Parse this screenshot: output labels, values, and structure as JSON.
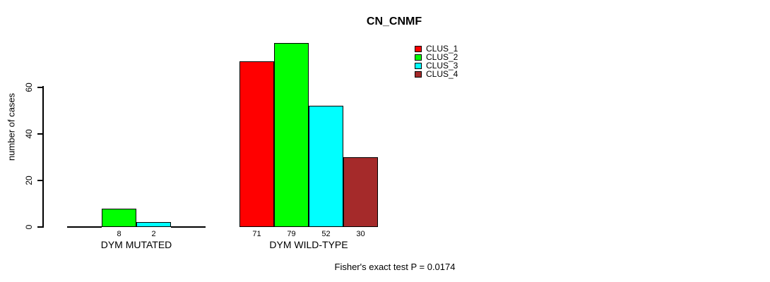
{
  "chart_data": {
    "type": "bar",
    "title": "CN_CNMF",
    "xlabel": "",
    "ylabel": "number of cases",
    "yticks": [
      0,
      20,
      40,
      60
    ],
    "ylim": [
      0,
      83
    ],
    "grid": false,
    "legend_position": "top-right",
    "categories": [
      "DYM MUTATED",
      "DYM WILD-TYPE"
    ],
    "series": [
      {
        "name": "CLUS_1",
        "color": "#FF0000",
        "values": [
          0,
          71
        ]
      },
      {
        "name": "CLUS_2",
        "color": "#00FF00",
        "values": [
          8,
          79
        ]
      },
      {
        "name": "CLUS_3",
        "color": "#00FFFF",
        "values": [
          2,
          52
        ]
      },
      {
        "name": "CLUS_4",
        "color": "#A52A2A",
        "values": [
          0,
          30
        ]
      }
    ],
    "bar_value_labels": [
      [
        "",
        "8",
        "2",
        ""
      ],
      [
        "71",
        "79",
        "52",
        "30"
      ]
    ],
    "footnote": "Fisher's exact test P = 0.0174"
  }
}
